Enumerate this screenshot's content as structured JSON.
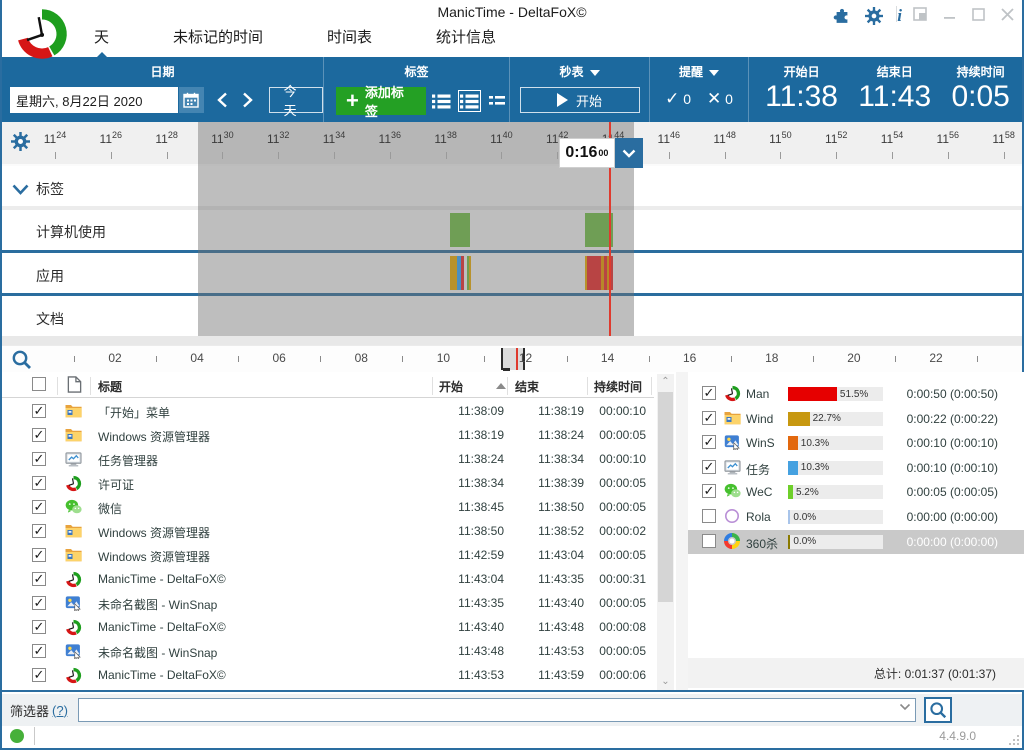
{
  "window": {
    "title": "ManicTime - DeltaFoX©",
    "version": "4.4.9.0"
  },
  "tabs": [
    {
      "label": "天",
      "selected": true
    },
    {
      "label": "未标记的时间",
      "selected": false
    },
    {
      "label": "时间表",
      "selected": false
    },
    {
      "label": "统计信息",
      "selected": false
    }
  ],
  "toolbar": {
    "date": {
      "label": "日期",
      "value": "星期六, 8月22日 2020",
      "today": "今天"
    },
    "tags": {
      "label": "标签",
      "add": "添加标签"
    },
    "stopwatch": {
      "label": "秒表",
      "start": "开始"
    },
    "reminder": {
      "label": "提醒",
      "ok": "0",
      "fail": "0"
    },
    "times": {
      "start_label": "开始日",
      "start_value": "11:38",
      "end_label": "结束日",
      "end_value": "11:43",
      "dur_label": "持续时间",
      "dur_value": "0:05"
    }
  },
  "timeline": {
    "rows": [
      "标签",
      "计算机使用",
      "应用",
      "文档"
    ],
    "ticks": [
      {
        "h": "11",
        "m": "24"
      },
      {
        "h": "11",
        "m": "26"
      },
      {
        "h": "11",
        "m": "28"
      },
      {
        "h": "11",
        "m": "30"
      },
      {
        "h": "11",
        "m": "32"
      },
      {
        "h": "11",
        "m": "34"
      },
      {
        "h": "11",
        "m": "36"
      },
      {
        "h": "11",
        "m": "38"
      },
      {
        "h": "11",
        "m": "40"
      },
      {
        "h": "11",
        "m": "42"
      },
      {
        "h": "11",
        "m": "44"
      },
      {
        "h": "11",
        "m": "46"
      },
      {
        "h": "11",
        "m": "48"
      },
      {
        "h": "11",
        "m": "50"
      },
      {
        "h": "11",
        "m": "52"
      },
      {
        "h": "11",
        "m": "54"
      },
      {
        "h": "11",
        "m": "56"
      },
      {
        "h": "11",
        "m": "58"
      }
    ],
    "selection": {
      "start": "11:29:08",
      "end": "11:44:45",
      "now": "11:43:52",
      "label": "0:16",
      "label_sup": "00"
    },
    "usage_blocks": [
      {
        "start": "11:38:09",
        "end": "11:38:52"
      },
      {
        "start": "11:42:59",
        "end": "11:43:59"
      }
    ],
    "app_segments": [
      {
        "start": "11:38:09",
        "end": "11:38:24",
        "app": "explorer"
      },
      {
        "start": "11:38:24",
        "end": "11:38:34",
        "app": "taskmgr"
      },
      {
        "start": "11:38:34",
        "end": "11:38:39",
        "app": "manictime"
      },
      {
        "start": "11:38:45",
        "end": "11:38:50",
        "app": "wechat"
      },
      {
        "start": "11:38:50",
        "end": "11:38:52",
        "app": "explorer"
      },
      {
        "start": "11:42:59",
        "end": "11:43:04",
        "app": "explorer"
      },
      {
        "start": "11:43:04",
        "end": "11:43:35",
        "app": "manictime"
      },
      {
        "start": "11:43:35",
        "end": "11:43:40",
        "app": "winsnap"
      },
      {
        "start": "11:43:40",
        "end": "11:43:48",
        "app": "manictime"
      },
      {
        "start": "11:43:48",
        "end": "11:43:53",
        "app": "winsnap"
      },
      {
        "start": "11:43:53",
        "end": "11:43:59",
        "app": "manictime"
      }
    ],
    "app_colors": {
      "explorer": "#b8922c",
      "taskmgr": "#4a8fc2",
      "manictime": "#b84444",
      "wechat": "#6f9e50",
      "winsnap": "#b8862a"
    },
    "usage_color": "#6f9e55"
  },
  "hours_axis": {
    "labels": [
      "02",
      "04",
      "06",
      "08",
      "10",
      "12",
      "14",
      "16",
      "18",
      "20",
      "22"
    ]
  },
  "table": {
    "headers": {
      "title": "标题",
      "start": "开始",
      "end": "结束",
      "duration": "持续时间"
    },
    "rows": [
      {
        "checked": true,
        "icon": "explorer",
        "title": "「开始」菜单",
        "start": "11:38:09",
        "end": "11:38:19",
        "dur": "00:00:10"
      },
      {
        "checked": true,
        "icon": "explorer",
        "title": "Windows 资源管理器",
        "start": "11:38:19",
        "end": "11:38:24",
        "dur": "00:00:05"
      },
      {
        "checked": true,
        "icon": "taskmgr",
        "title": "任务管理器",
        "start": "11:38:24",
        "end": "11:38:34",
        "dur": "00:00:10"
      },
      {
        "checked": true,
        "icon": "manictime",
        "title": "许可证",
        "start": "11:38:34",
        "end": "11:38:39",
        "dur": "00:00:05"
      },
      {
        "checked": true,
        "icon": "wechat",
        "title": "微信",
        "start": "11:38:45",
        "end": "11:38:50",
        "dur": "00:00:05"
      },
      {
        "checked": true,
        "icon": "explorer",
        "title": "Windows 资源管理器",
        "start": "11:38:50",
        "end": "11:38:52",
        "dur": "00:00:02"
      },
      {
        "checked": true,
        "icon": "explorer",
        "title": "Windows 资源管理器",
        "start": "11:42:59",
        "end": "11:43:04",
        "dur": "00:00:05"
      },
      {
        "checked": true,
        "icon": "manictime",
        "title": "ManicTime - DeltaFoX©",
        "start": "11:43:04",
        "end": "11:43:35",
        "dur": "00:00:31"
      },
      {
        "checked": true,
        "icon": "winsnap",
        "title": "未命名截图 - WinSnap",
        "start": "11:43:35",
        "end": "11:43:40",
        "dur": "00:00:05"
      },
      {
        "checked": true,
        "icon": "manictime",
        "title": "ManicTime - DeltaFoX©",
        "start": "11:43:40",
        "end": "11:43:48",
        "dur": "00:00:08"
      },
      {
        "checked": true,
        "icon": "winsnap",
        "title": "未命名截图 - WinSnap",
        "start": "11:43:48",
        "end": "11:43:53",
        "dur": "00:00:05"
      },
      {
        "checked": true,
        "icon": "manictime",
        "title": "ManicTime - DeltaFoX©",
        "start": "11:43:53",
        "end": "11:43:59",
        "dur": "00:00:06"
      }
    ]
  },
  "apps_panel": {
    "rows": [
      {
        "checked": true,
        "selected": false,
        "icon": "manictime",
        "name": "Man",
        "pct": 51.5,
        "pct_label": "51.5%",
        "color": "#e60000",
        "dur": "0:00:50 (0:00:50)"
      },
      {
        "checked": true,
        "selected": false,
        "icon": "explorer",
        "name": "Wind",
        "pct": 22.7,
        "pct_label": "22.7%",
        "color": "#c79810",
        "dur": "0:00:22 (0:00:22)"
      },
      {
        "checked": true,
        "selected": false,
        "icon": "winsnap",
        "name": "WinS",
        "pct": 10.3,
        "pct_label": "10.3%",
        "color": "#e2680e",
        "dur": "0:00:10 (0:00:10)"
      },
      {
        "checked": true,
        "selected": false,
        "icon": "taskmgr",
        "name": "任务",
        "pct": 10.3,
        "pct_label": "10.3%",
        "color": "#45a1e0",
        "dur": "0:00:10 (0:00:10)"
      },
      {
        "checked": true,
        "selected": false,
        "icon": "wechat",
        "name": "WeC",
        "pct": 5.2,
        "pct_label": "5.2%",
        "color": "#6ecf2a",
        "dur": "0:00:05 (0:00:05)"
      },
      {
        "checked": false,
        "selected": false,
        "icon": "rola",
        "name": "Rola",
        "pct": 0.0,
        "pct_label": "0.0%",
        "color": "#a8c4ea",
        "dur": "0:00:00 (0:00:00)"
      },
      {
        "checked": false,
        "selected": true,
        "icon": "p360",
        "name": "360杀",
        "pct": 0.0,
        "pct_label": "0.0%",
        "color": "#8a7a00",
        "dur": "0:00:00 (0:00:00)"
      }
    ],
    "total": "总计: 0:01:37 (0:01:37)"
  },
  "filter": {
    "label": "筛选器",
    "help": "(?)"
  }
}
